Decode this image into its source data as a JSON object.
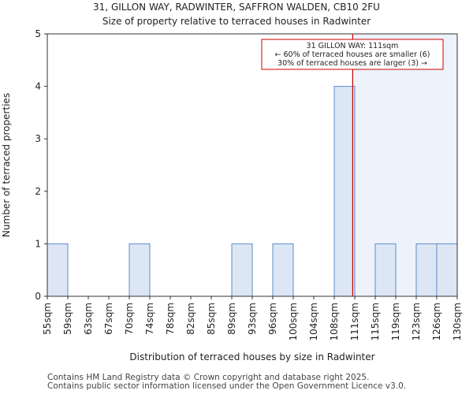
{
  "header": {
    "line1": "31, GILLON WAY, RADWINTER, SAFFRON WALDEN, CB10 2FU",
    "line2": "Size of property relative to terraced houses in Radwinter"
  },
  "footer": {
    "line1": "Contains HM Land Registry data © Crown copyright and database right 2025.",
    "line2": "Contains public sector information licensed under the Open Government Licence v3.0."
  },
  "colors": {
    "bar_fill": "#dce6f4",
    "bar_stroke": "#5b8cc8",
    "highlight_fill": "#eef2fb",
    "marker": "#cc0000",
    "annotation_border": "#cc0000"
  },
  "chart_data": {
    "type": "bar",
    "title": "Size of property relative to terraced houses in Radwinter",
    "xlabel": "Distribution of terraced houses by size in Radwinter",
    "ylabel": "Number of terraced properties",
    "ylim": [
      0,
      5
    ],
    "yticks": [
      0,
      1,
      2,
      3,
      4,
      5
    ],
    "grid": false,
    "bin_edges": [
      "55sqm",
      "59sqm",
      "63sqm",
      "67sqm",
      "70sqm",
      "74sqm",
      "78sqm",
      "82sqm",
      "85sqm",
      "89sqm",
      "93sqm",
      "96sqm",
      "100sqm",
      "104sqm",
      "108sqm",
      "111sqm",
      "115sqm",
      "119sqm",
      "123sqm",
      "126sqm",
      "130sqm"
    ],
    "values": [
      1,
      0,
      0,
      0,
      1,
      0,
      0,
      0,
      0,
      1,
      0,
      1,
      0,
      0,
      4,
      0,
      1,
      0,
      1,
      1
    ],
    "marker": {
      "value": "111sqm",
      "position_bins": 14.9
    },
    "highlight_from_bin": 14.9,
    "annotation": {
      "lines": [
        "31 GILLON WAY: 111sqm",
        "← 60% of terraced houses are smaller (6)",
        "30% of terraced houses are larger (3) →"
      ]
    }
  }
}
